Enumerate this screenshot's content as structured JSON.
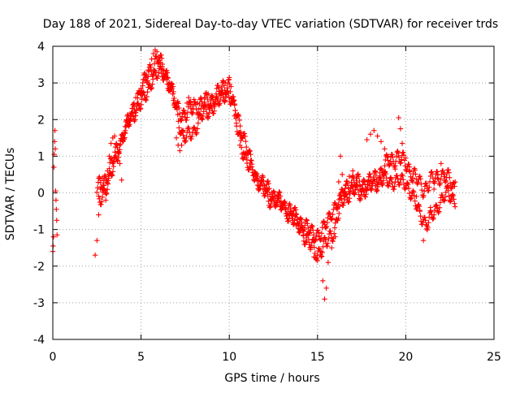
{
  "chart_data": {
    "type": "scatter",
    "title": "Day 188 of 2021, Sidereal Day-to-day VTEC variation (SDTVAR) for receiver trds",
    "xlabel": "GPS time / hours",
    "ylabel": "SDTVAR / TECUs",
    "xlim": [
      0,
      25
    ],
    "ylim": [
      -4,
      4
    ],
    "grid": true,
    "x_ticks": [
      {
        "value": 0,
        "label": "0"
      },
      {
        "value": 5,
        "label": "5"
      },
      {
        "value": 10,
        "label": "10"
      },
      {
        "value": 15,
        "label": "15"
      },
      {
        "value": 20,
        "label": "20"
      },
      {
        "value": 25,
        "label": "25"
      }
    ],
    "y_ticks": [
      {
        "value": -4,
        "label": "-4"
      },
      {
        "value": -3,
        "label": "-3"
      },
      {
        "value": -2,
        "label": "-2"
      },
      {
        "value": -1,
        "label": "-1"
      },
      {
        "value": 0,
        "label": "0"
      },
      {
        "value": 1,
        "label": "1"
      },
      {
        "value": 2,
        "label": "2"
      },
      {
        "value": 3,
        "label": "3"
      },
      {
        "value": 4,
        "label": "4"
      }
    ],
    "series": [
      {
        "name": "SDTVAR",
        "marker": "plus",
        "color": "#ff0000",
        "points": [
          [
            0.0,
            -1.6
          ],
          [
            0.02,
            -1.45
          ],
          [
            0.04,
            -1.2
          ],
          [
            0.06,
            0.7
          ],
          [
            0.08,
            1.05
          ],
          [
            0.1,
            1.4
          ],
          [
            0.12,
            1.7
          ],
          [
            0.14,
            1.2
          ],
          [
            0.16,
            0.05
          ],
          [
            0.18,
            -0.2
          ],
          [
            0.2,
            -0.45
          ],
          [
            0.22,
            -0.75
          ],
          [
            0.24,
            -1.15
          ],
          [
            2.4,
            -1.7
          ],
          [
            2.5,
            -1.3
          ],
          [
            2.6,
            -0.6
          ],
          [
            2.7,
            0.1
          ],
          [
            2.8,
            0.4
          ],
          [
            2.9,
            0.2
          ],
          [
            3.0,
            -0.2
          ],
          [
            3.1,
            0.6
          ],
          [
            3.2,
            1.0
          ],
          [
            3.3,
            1.35
          ],
          [
            3.4,
            1.5
          ],
          [
            3.5,
            1.55
          ],
          [
            3.6,
            1.35
          ],
          [
            3.7,
            1.1
          ],
          [
            3.8,
            0.8
          ],
          [
            3.9,
            0.35
          ],
          [
            4.0,
            1.5
          ],
          [
            4.1,
            1.7
          ],
          [
            4.2,
            1.85
          ],
          [
            4.3,
            1.95
          ],
          [
            4.4,
            2.1
          ],
          [
            4.5,
            2.3
          ],
          [
            4.6,
            2.45
          ],
          [
            4.7,
            2.6
          ],
          [
            4.8,
            2.7
          ],
          [
            4.9,
            2.75
          ],
          [
            5.0,
            2.85
          ],
          [
            5.1,
            3.0
          ],
          [
            5.2,
            3.1
          ],
          [
            5.3,
            3.2
          ],
          [
            5.4,
            3.35
          ],
          [
            5.5,
            3.5
          ],
          [
            5.6,
            3.65
          ],
          [
            5.7,
            3.8
          ],
          [
            5.8,
            3.9
          ],
          [
            5.9,
            3.85
          ],
          [
            6.0,
            3.7
          ],
          [
            6.1,
            3.55
          ],
          [
            6.2,
            3.45
          ],
          [
            6.3,
            3.35
          ],
          [
            6.4,
            3.25
          ],
          [
            6.5,
            3.15
          ],
          [
            6.6,
            3.0
          ],
          [
            6.7,
            2.85
          ],
          [
            6.8,
            2.7
          ],
          [
            6.9,
            2.45
          ],
          [
            7.0,
            1.5
          ],
          [
            7.1,
            1.3
          ],
          [
            7.2,
            1.15
          ],
          [
            7.3,
            1.3
          ],
          [
            7.4,
            1.7
          ],
          [
            7.5,
            2.15
          ],
          [
            7.6,
            2.45
          ],
          [
            7.7,
            2.6
          ],
          [
            7.8,
            2.5
          ],
          [
            7.9,
            2.4
          ],
          [
            8.0,
            2.55
          ],
          [
            8.2,
            2.45
          ],
          [
            8.4,
            2.3
          ],
          [
            8.6,
            2.6
          ],
          [
            8.8,
            2.7
          ],
          [
            9.0,
            2.6
          ],
          [
            9.2,
            2.45
          ],
          [
            9.4,
            2.7
          ],
          [
            9.6,
            2.8
          ],
          [
            9.8,
            3.0
          ],
          [
            10.0,
            3.15
          ],
          [
            10.1,
            2.9
          ],
          [
            10.2,
            2.5
          ],
          [
            10.3,
            2.1
          ],
          [
            10.4,
            1.9
          ],
          [
            10.5,
            1.6
          ],
          [
            10.6,
            1.3
          ],
          [
            10.8,
            1.1
          ],
          [
            11.0,
            0.9
          ],
          [
            11.2,
            0.7
          ],
          [
            11.4,
            0.55
          ],
          [
            11.6,
            0.4
          ],
          [
            11.8,
            0.3
          ],
          [
            12.0,
            0.2
          ],
          [
            12.2,
            0.1
          ],
          [
            12.4,
            0.0
          ],
          [
            12.6,
            -0.1
          ],
          [
            12.8,
            -0.15
          ],
          [
            13.0,
            -0.3
          ],
          [
            13.2,
            -0.45
          ],
          [
            13.4,
            -0.6
          ],
          [
            13.6,
            -0.75
          ],
          [
            13.8,
            -0.9
          ],
          [
            14.0,
            -1.0
          ],
          [
            14.2,
            -1.15
          ],
          [
            14.4,
            -1.35
          ],
          [
            14.6,
            -1.55
          ],
          [
            14.8,
            -1.75
          ],
          [
            15.0,
            -1.85
          ],
          [
            15.2,
            -1.6
          ],
          [
            15.3,
            -2.4
          ],
          [
            15.4,
            -2.9
          ],
          [
            15.5,
            -2.6
          ],
          [
            15.6,
            -1.9
          ],
          [
            15.8,
            -1.5
          ],
          [
            16.0,
            -1.2
          ],
          [
            16.1,
            -0.4
          ],
          [
            16.2,
            0.3
          ],
          [
            16.3,
            1.0
          ],
          [
            16.4,
            0.5
          ],
          [
            16.5,
            -0.1
          ],
          [
            16.6,
            0.2
          ],
          [
            16.8,
            0.45
          ],
          [
            17.0,
            0.6
          ],
          [
            17.2,
            0.4
          ],
          [
            17.4,
            0.2
          ],
          [
            17.6,
            0.3
          ],
          [
            17.8,
            1.45
          ],
          [
            18.0,
            1.6
          ],
          [
            18.2,
            1.7
          ],
          [
            18.4,
            1.55
          ],
          [
            18.6,
            1.4
          ],
          [
            18.8,
            1.2
          ],
          [
            19.0,
            1.0
          ],
          [
            19.2,
            0.8
          ],
          [
            19.4,
            0.65
          ],
          [
            19.6,
            2.05
          ],
          [
            19.7,
            1.75
          ],
          [
            19.8,
            1.35
          ],
          [
            20.0,
            0.95
          ],
          [
            20.2,
            0.6
          ],
          [
            20.4,
            0.3
          ],
          [
            20.6,
            -0.1
          ],
          [
            20.8,
            -0.5
          ],
          [
            21.0,
            -1.3
          ],
          [
            21.2,
            -0.9
          ],
          [
            21.4,
            -0.4
          ],
          [
            21.6,
            0.1
          ],
          [
            21.8,
            0.4
          ],
          [
            22.0,
            0.8
          ],
          [
            22.2,
            0.5
          ],
          [
            22.4,
            0.2
          ],
          [
            22.6,
            -0.1
          ],
          [
            22.8,
            0.3
          ]
        ],
        "bands": [
          {
            "points": [
              [
                2.5,
                0.1
              ],
              [
                3.0,
                0.4
              ],
              [
                3.5,
                1.0
              ],
              [
                4.0,
                1.6
              ],
              [
                4.5,
                2.2
              ],
              [
                5.0,
                2.8
              ],
              [
                5.5,
                3.35
              ],
              [
                6.0,
                3.65
              ],
              [
                6.5,
                3.2
              ],
              [
                7.0,
                2.35
              ],
              [
                7.5,
                2.1
              ],
              [
                8.0,
                2.35
              ],
              [
                8.5,
                2.45
              ],
              [
                9.0,
                2.55
              ],
              [
                9.5,
                2.8
              ],
              [
                10.0,
                3.0
              ],
              [
                10.5,
                1.65
              ],
              [
                11.0,
                0.8
              ],
              [
                11.5,
                0.45
              ],
              [
                12.0,
                0.2
              ],
              [
                12.5,
                -0.05
              ],
              [
                13.0,
                -0.3
              ],
              [
                13.5,
                -0.65
              ],
              [
                14.0,
                -0.95
              ],
              [
                14.5,
                -1.35
              ],
              [
                15.0,
                -1.65
              ],
              [
                15.5,
                -1.4
              ],
              [
                16.0,
                -0.95
              ],
              [
                16.5,
                0.15
              ],
              [
                17.0,
                0.3
              ],
              [
                17.5,
                0.25
              ],
              [
                18.0,
                0.3
              ],
              [
                18.5,
                0.5
              ],
              [
                19.0,
                0.85
              ],
              [
                19.5,
                1.0
              ],
              [
                20.0,
                0.8
              ],
              [
                20.5,
                0.45
              ],
              [
                21.0,
                0.1
              ],
              [
                21.5,
                0.35
              ],
              [
                22.0,
                0.5
              ],
              [
                22.5,
                0.35
              ],
              [
                22.8,
                0.1
              ]
            ],
            "spread": 0.18
          },
          {
            "points": [
              [
                2.6,
                -0.25
              ],
              [
                3.2,
                0.3
              ],
              [
                3.8,
                1.3
              ],
              [
                4.4,
                2.05
              ],
              [
                5.0,
                2.4
              ],
              [
                5.6,
                3.05
              ],
              [
                6.2,
                3.35
              ],
              [
                6.8,
                2.65
              ],
              [
                7.4,
                1.45
              ],
              [
                8.0,
                1.7
              ],
              [
                8.6,
                2.2
              ],
              [
                9.2,
                2.35
              ],
              [
                9.8,
                2.75
              ],
              [
                10.4,
                2.25
              ],
              [
                11.0,
                1.2
              ],
              [
                11.6,
                0.3
              ],
              [
                12.2,
                -0.15
              ],
              [
                12.8,
                -0.3
              ],
              [
                13.4,
                -0.45
              ],
              [
                14.0,
                -0.75
              ],
              [
                14.6,
                -1.05
              ],
              [
                15.2,
                -1.15
              ],
              [
                15.8,
                -0.5
              ],
              [
                16.4,
                -0.2
              ],
              [
                17.0,
                0.05
              ],
              [
                17.6,
                0.0
              ],
              [
                18.2,
                0.25
              ],
              [
                18.8,
                0.35
              ],
              [
                19.4,
                0.3
              ],
              [
                20.0,
                0.3
              ],
              [
                20.6,
                -0.35
              ],
              [
                21.2,
                -0.9
              ],
              [
                21.8,
                -0.35
              ],
              [
                22.4,
                0.0
              ],
              [
                22.8,
                -0.2
              ]
            ],
            "spread": 0.16
          }
        ]
      }
    ]
  }
}
